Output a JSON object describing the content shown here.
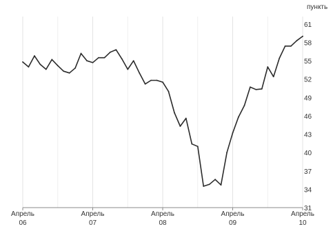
{
  "chart_data": {
    "type": "line",
    "y_unit_label": "пункть",
    "x_tick_labels": [
      {
        "month": "Апрель",
        "year": "06",
        "x": 2006.25
      },
      {
        "month": "Апрель",
        "year": "07",
        "x": 2007.25
      },
      {
        "month": "Апрель",
        "year": "08",
        "x": 2008.25
      },
      {
        "month": "Апрель",
        "year": "09",
        "x": 2009.25
      },
      {
        "month": "Апрель",
        "year": "10",
        "x": 2010.25
      }
    ],
    "y_ticks": [
      31,
      34,
      37,
      40,
      43,
      46,
      49,
      52,
      55,
      58,
      61
    ],
    "xlim": [
      2006.25,
      2010.25
    ],
    "ylim": [
      31,
      62
    ],
    "grid": {
      "vertical": true,
      "horizontal": false
    },
    "line_color": "#2b2b2b",
    "series": [
      {
        "x": [
          2006.25,
          2006.333,
          2006.417,
          2006.5,
          2006.583,
          2006.667,
          2006.75,
          2006.833,
          2006.917,
          2007.0,
          2007.083,
          2007.167,
          2007.25,
          2007.333,
          2007.417,
          2007.5,
          2007.583,
          2007.667,
          2007.75,
          2007.833,
          2007.917,
          2008.0,
          2008.083,
          2008.167,
          2008.25,
          2008.333,
          2008.417,
          2008.5,
          2008.583,
          2008.667,
          2008.75,
          2008.833,
          2008.917,
          2009.0,
          2009.083,
          2009.167,
          2009.25,
          2009.333,
          2009.417,
          2009.5,
          2009.583,
          2009.667,
          2009.75,
          2009.833,
          2009.917,
          2010.0,
          2010.083,
          2010.167,
          2010.25
        ],
        "y": [
          54.8,
          54.0,
          55.8,
          54.4,
          53.6,
          55.2,
          54.2,
          53.3,
          53.0,
          53.8,
          56.2,
          55.0,
          54.7,
          55.5,
          55.5,
          56.4,
          56.8,
          55.3,
          53.6,
          55.0,
          53.0,
          51.2,
          51.8,
          51.8,
          51.5,
          50.0,
          46.5,
          44.3,
          45.6,
          41.4,
          41.0,
          34.5,
          34.8,
          35.6,
          34.7,
          40.0,
          43.2,
          45.8,
          47.7,
          50.7,
          50.3,
          50.4,
          54.0,
          52.4,
          55.4,
          57.4,
          57.4,
          58.3,
          59.0
        ]
      }
    ]
  }
}
